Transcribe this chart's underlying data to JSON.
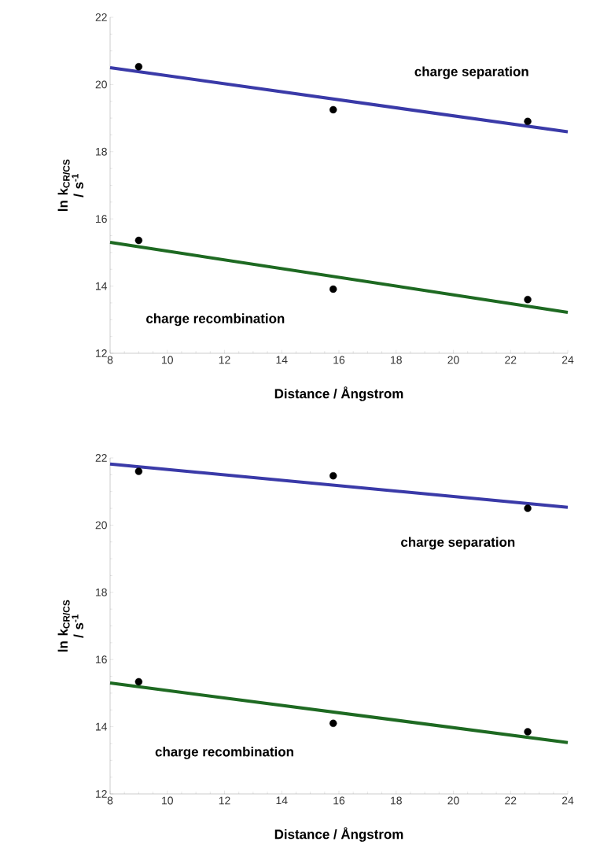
{
  "chart_data": [
    {
      "type": "scatter",
      "xlabel": "Distance / Ångstrom",
      "ylabel": "ln k$_{CR/CS}$ / s$^{-1}$",
      "xlim": [
        8,
        24
      ],
      "ylim": [
        12,
        22
      ],
      "xticks": [
        8,
        10,
        12,
        14,
        16,
        18,
        20,
        22,
        24
      ],
      "yticks": [
        12,
        14,
        16,
        18,
        20,
        22
      ],
      "grid": false,
      "series": [
        {
          "type": "line",
          "color": "#3a3aa8",
          "x": [
            8,
            24
          ],
          "values": [
            20.5,
            18.59
          ],
          "marker": "none"
        },
        {
          "type": "line",
          "color": "#1e6a22",
          "x": [
            8,
            24
          ],
          "values": [
            15.3,
            13.22
          ],
          "marker": "none"
        },
        {
          "color": "#000000",
          "x": [
            9,
            15.8,
            22.6
          ],
          "values": [
            20.53,
            19.25,
            18.9
          ],
          "marker": "circle"
        },
        {
          "color": "#000000",
          "x": [
            9,
            15.8,
            22.6
          ],
          "values": [
            15.36,
            13.91,
            13.6
          ],
          "marker": "circle"
        }
      ],
      "annotations": [
        "charge separation",
        "charge recombination"
      ]
    },
    {
      "type": "scatter",
      "xlabel": "Distance / Ångstrom",
      "ylabel": "ln k$_{CR/CS}$ / s$^{-1}$",
      "xlim": [
        8,
        24
      ],
      "ylim": [
        12,
        22
      ],
      "xticks": [
        8,
        10,
        12,
        14,
        16,
        18,
        20,
        22,
        24
      ],
      "yticks": [
        12,
        14,
        16,
        18,
        20,
        22
      ],
      "grid": false,
      "series": [
        {
          "type": "line",
          "color": "#3a3aa8",
          "x": [
            8,
            24
          ],
          "values": [
            21.82,
            20.53
          ],
          "marker": "none"
        },
        {
          "type": "line",
          "color": "#1e6a22",
          "x": [
            8,
            24
          ],
          "values": [
            15.3,
            13.53
          ],
          "marker": "none"
        },
        {
          "color": "#000000",
          "x": [
            9,
            15.8,
            22.6
          ],
          "values": [
            21.6,
            21.47,
            20.5
          ],
          "marker": "circle"
        },
        {
          "color": "#000000",
          "x": [
            9,
            15.8,
            22.6
          ],
          "values": [
            15.34,
            14.1,
            13.85
          ],
          "marker": "circle"
        }
      ],
      "annotations": [
        "charge separation",
        "charge recombination"
      ]
    }
  ]
}
